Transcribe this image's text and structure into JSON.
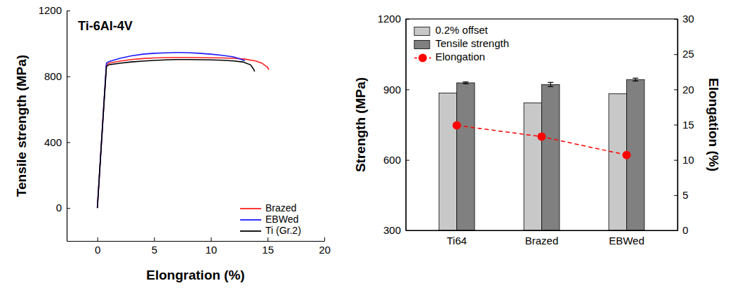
{
  "chart_data": [
    {
      "type": "line",
      "title": "Ti-6Al-4V",
      "x_label": "Elongration (%)",
      "y_label": "Tensile strength (MPa)",
      "xlim": [
        -2.7,
        20
      ],
      "xticks": [
        0,
        5,
        10,
        15,
        20
      ],
      "ylim": [
        -200,
        1200
      ],
      "yticks": [
        0,
        400,
        800,
        1200
      ],
      "legend": "lower right",
      "series": [
        {
          "name": "Brazed",
          "color": "#ff2020",
          "x": [
            0,
            0.3,
            0.6,
            0.8,
            1.0,
            2,
            3,
            4,
            5,
            6,
            7,
            8,
            9,
            10,
            11,
            12,
            13,
            14,
            14.5,
            15.0,
            15.1
          ],
          "values": [
            0,
            330,
            660,
            870,
            880,
            893,
            902,
            908,
            912,
            914,
            915,
            915,
            914,
            913,
            912,
            910,
            905,
            893,
            880,
            855,
            840
          ]
        },
        {
          "name": "EBWed",
          "color": "#1a1aff",
          "x": [
            0,
            0.3,
            0.6,
            0.8,
            1.0,
            2,
            3,
            4,
            5,
            6,
            7,
            8,
            9,
            10,
            11,
            12,
            12.5,
            13.0
          ],
          "values": [
            0,
            330,
            660,
            880,
            890,
            910,
            925,
            935,
            940,
            943,
            945,
            944,
            940,
            935,
            928,
            918,
            908,
            895
          ]
        },
        {
          "name": "Ti (Gr.2)",
          "color": "#000000",
          "x": [
            0,
            0.3,
            0.6,
            0.8,
            1.0,
            2,
            3,
            4,
            5,
            6,
            7,
            8,
            9,
            10,
            11,
            12,
            12.8,
            13.5,
            13.8,
            13.85
          ],
          "values": [
            0,
            330,
            650,
            860,
            870,
            880,
            888,
            893,
            897,
            900,
            902,
            902,
            901,
            900,
            898,
            894,
            888,
            870,
            840,
            830
          ]
        }
      ]
    },
    {
      "type": "bar",
      "categories": [
        "Ti64",
        "Brazed",
        "EBWed"
      ],
      "y_label": "Strength (MPa)",
      "y2_label": "Elongation (%)",
      "ylim": [
        300,
        1200
      ],
      "yticks": [
        300,
        600,
        900,
        1200
      ],
      "y2lim": [
        0,
        30
      ],
      "y2ticks": [
        0,
        5,
        10,
        15,
        20,
        25,
        30
      ],
      "legend": "upper left",
      "series": [
        {
          "name": "0.2% offset",
          "color": "#c8c8c8",
          "values": [
            885,
            843,
            882
          ]
        },
        {
          "name": "Tensile strength",
          "color": "#808080",
          "values": [
            928,
            921,
            942
          ],
          "errors": [
            4,
            9,
            6
          ]
        },
        {
          "name": "Elongation",
          "type": "line",
          "axis": "y2",
          "color": "#ff0000",
          "marker": "circle",
          "line_style": "dashed",
          "values": [
            14.9,
            13.3,
            10.7
          ]
        }
      ]
    }
  ]
}
